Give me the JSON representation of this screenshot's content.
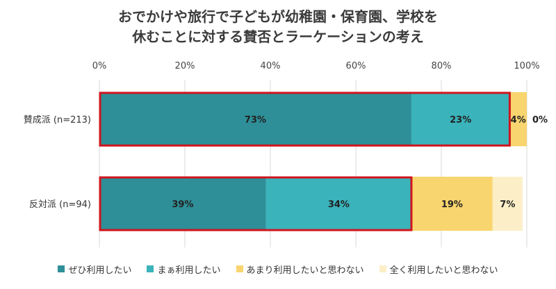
{
  "title": {
    "line1": "おでかけや旅行で子どもが幼稚園・保育園、学校を",
    "line2": "休むことに対する賛否とラーケーションの考え"
  },
  "chart_data": {
    "type": "bar",
    "orientation": "horizontal",
    "stacked": true,
    "title": "おでかけや旅行で子どもが幼稚園・保育園、学校を休むことに対する賛否とラーケーションの考え",
    "categories": [
      "賛成派 (n=213)",
      "反対派 (n=94)"
    ],
    "series": [
      {
        "name": "ぜひ利用したい",
        "values": [
          73,
          39
        ],
        "labels": [
          "73%",
          "39%"
        ],
        "color": "#2e8f98"
      },
      {
        "name": "まぁ利用したい",
        "values": [
          23,
          34
        ],
        "labels": [
          "23%",
          "34%"
        ],
        "color": "#3ab3bb"
      },
      {
        "name": "あまり利用したいと思わない",
        "values": [
          4,
          19
        ],
        "labels": [
          "4%",
          "19%"
        ],
        "color": "#f8d56e"
      },
      {
        "name": "全く利用したいと思わない",
        "values": [
          0,
          7
        ],
        "labels": [
          "0%",
          "7%"
        ],
        "color": "#fcefc8"
      }
    ],
    "xlim": [
      0,
      100
    ],
    "xticks": [
      "0%",
      "20%",
      "40%",
      "60%",
      "80%",
      "100%"
    ],
    "grid": true,
    "legend_position": "bottom",
    "highlight_color": "#d0141d",
    "highlight_series_count": 2
  }
}
